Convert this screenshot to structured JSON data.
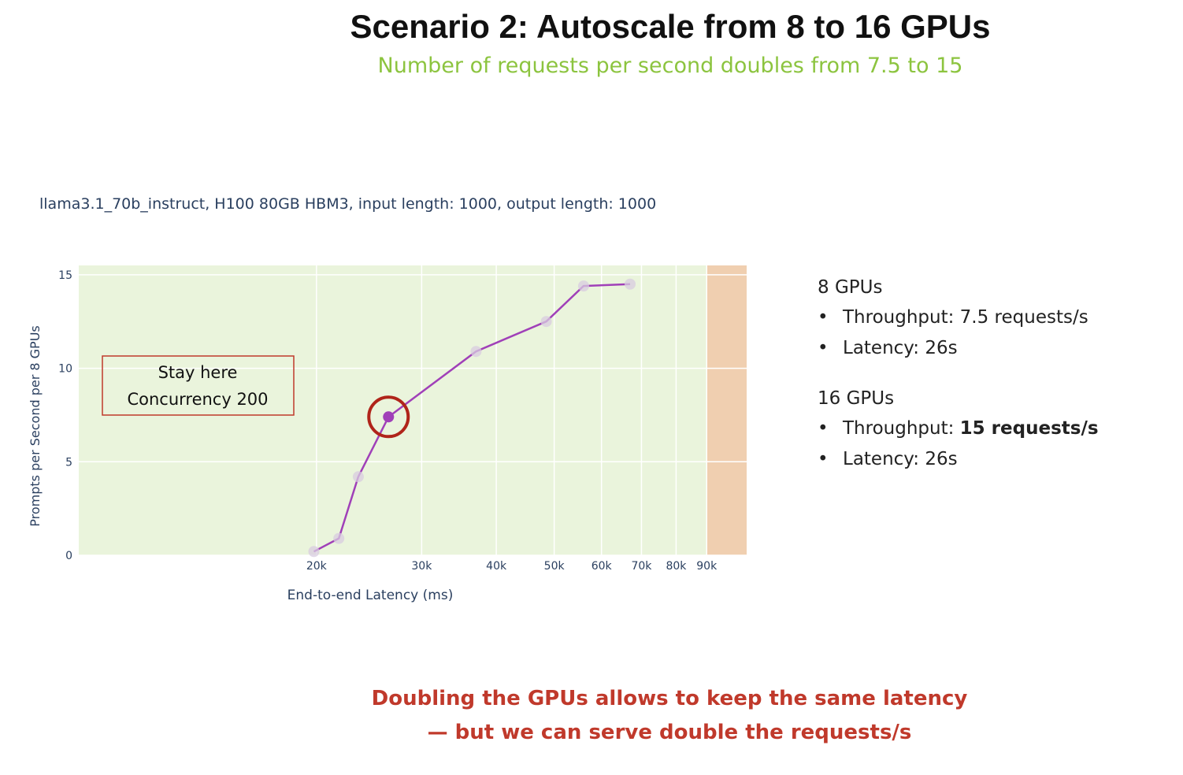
{
  "slide": {
    "title": "Scenario 2: Autoscale from 8 to 16 GPUs",
    "subtitle": "Number of requests per second doubles from 7.5 to 15",
    "conclusion_line1": "Doubling the GPUs allows to keep the same latency",
    "conclusion_line2": "— but we can serve double the requests/s"
  },
  "colors": {
    "subtitle": "#8cc43f",
    "conclusion": "#c0392b",
    "plot_bg": "#eaf4dc",
    "shaded_band": "#f0cfb0",
    "line": "#a040b8",
    "highlight_circle": "#b0241a",
    "callout_border": "#c0392b",
    "axis_text": "#2a3f5f"
  },
  "chart_data": {
    "type": "line",
    "title": "llama3.1_70b_instruct, H100 80GB HBM3, input length: 1000, output length: 1000",
    "xlabel": "End-to-end Latency (ms)",
    "ylabel": "Prompts per Second per 8 GPUs",
    "x_scale": "log",
    "xlim": [
      8000,
      105000
    ],
    "ylim": [
      0,
      15.5
    ],
    "x_ticks": [
      20000,
      30000,
      40000,
      50000,
      60000,
      70000,
      80000,
      90000
    ],
    "x_tick_labels": [
      "20k",
      "30k",
      "40k",
      "50k",
      "60k",
      "70k",
      "80k",
      "90k"
    ],
    "y_ticks": [
      0,
      5,
      10,
      15
    ],
    "y_tick_labels": [
      "0",
      "5",
      "10",
      "15"
    ],
    "grid": true,
    "shaded_region": {
      "x_start": 90000,
      "x_end": 105000
    },
    "series": [
      {
        "x": [
          19800,
          21800,
          23500,
          26400,
          37000,
          48500,
          56000,
          67000
        ],
        "y": [
          0.2,
          0.9,
          4.2,
          7.4,
          10.9,
          12.5,
          14.4,
          14.5
        ]
      }
    ],
    "highlight_point": {
      "x": 26400,
      "y": 7.4
    },
    "callout": {
      "line1": "Stay here",
      "line2": "Concurrency 200"
    }
  },
  "side_panel": {
    "groups": [
      {
        "heading": "8 GPUs",
        "items": [
          {
            "label": "Throughput: ",
            "value": "7.5 requests/s",
            "bold": false
          },
          {
            "label": "Latency: ",
            "value": "26s",
            "bold": false
          }
        ]
      },
      {
        "heading": "16 GPUs",
        "items": [
          {
            "label": "Throughput: ",
            "value": "15 requests/s",
            "bold": true
          },
          {
            "label": "Latency: ",
            "value": "26s",
            "bold": false
          }
        ]
      }
    ]
  }
}
